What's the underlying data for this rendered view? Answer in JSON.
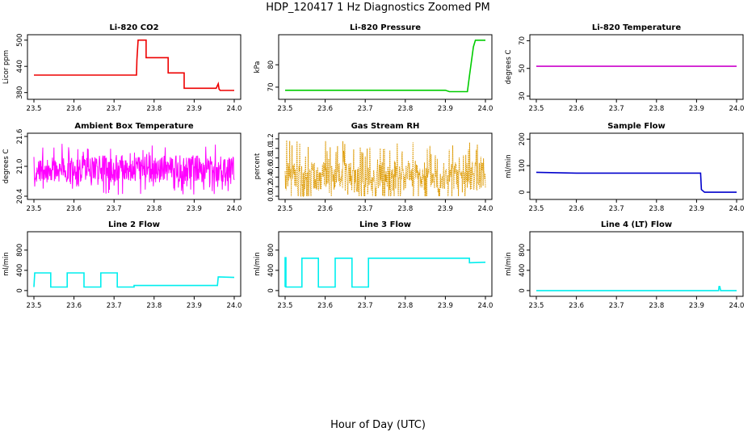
{
  "title": "HDP_120417  1 Hz Diagnostics Zoomed PM",
  "xlabel": "Hour of Day (UTC)",
  "chart_data": [
    {
      "type": "line",
      "title": "Li-820 CO2",
      "ylabel": "Licor ppm",
      "color": "#ee0000",
      "xlim": [
        23.5,
        24.0
      ],
      "ylim": [
        372,
        505
      ],
      "yticks": [
        380,
        440,
        500
      ],
      "xticks": [
        23.5,
        23.6,
        23.7,
        23.8,
        23.9,
        24.0
      ],
      "series": [
        {
          "x": [
            23.5,
            23.756,
            23.757,
            23.76,
            23.78,
            23.78,
            23.8,
            23.835,
            23.835,
            23.86,
            23.875,
            23.875,
            23.955,
            23.96,
            23.962,
            23.965,
            24.0
          ],
          "values": [
            420,
            420,
            455,
            500,
            500,
            460,
            460,
            460,
            425,
            425,
            425,
            390,
            390,
            400,
            388,
            385,
            385
          ]
        }
      ]
    },
    {
      "type": "line",
      "title": "Li-820 Pressure",
      "ylabel": "kPa",
      "color": "#00cc00",
      "xlim": [
        23.5,
        24.0
      ],
      "ylim": [
        66,
        92
      ],
      "yticks": [
        70,
        80
      ],
      "xticks": [
        23.5,
        23.6,
        23.7,
        23.8,
        23.9,
        24.0
      ],
      "series": [
        {
          "x": [
            23.5,
            23.8,
            23.9,
            23.91,
            23.955,
            23.96,
            23.97,
            23.975,
            24.0
          ],
          "values": [
            68.6,
            68.6,
            68.6,
            68.0,
            68.0,
            75,
            88,
            91,
            91
          ]
        }
      ]
    },
    {
      "type": "line",
      "title": "Li-820 Temperature",
      "ylabel": "degrees C",
      "color": "#cc00cc",
      "xlim": [
        23.5,
        24.0
      ],
      "ylim": [
        30,
        72
      ],
      "yticks": [
        30,
        50,
        70
      ],
      "xticks": [
        23.5,
        23.6,
        23.7,
        23.8,
        23.9,
        24.0
      ],
      "series": [
        {
          "x": [
            23.5,
            24.0
          ],
          "values": [
            51.5,
            51.5
          ]
        }
      ]
    },
    {
      "type": "line",
      "title": "Ambient Box Temperature",
      "ylabel": "degrees C",
      "color": "#ff00ff",
      "xlim": [
        23.5,
        24.0
      ],
      "ylim": [
        20.4,
        21.6
      ],
      "yticks": [
        20.4,
        21.0,
        21.6
      ],
      "xticks": [
        23.5,
        23.6,
        23.7,
        23.8,
        23.9,
        24.0
      ],
      "series": [
        {
          "x": [
            23.5,
            24.0
          ],
          "values": [
            20.9,
            21.0
          ]
        }
      ]
    },
    {
      "type": "line",
      "title": "Gas Stream RH",
      "ylabel": "percent",
      "color": "#dd9900",
      "xlim": [
        23.5,
        24.0
      ],
      "ylim": [
        0,
        1.25
      ],
      "yticks": [
        0.0,
        0.2,
        0.4,
        0.6,
        0.8,
        1.0,
        1.2
      ],
      "xticks": [
        23.5,
        23.6,
        23.7,
        23.8,
        23.9,
        24.0
      ],
      "series": [
        {
          "x": [
            23.5,
            24.0
          ],
          "values": [
            0.4,
            0.4
          ]
        }
      ]
    },
    {
      "type": "line",
      "title": "Sample Flow",
      "ylabel": "ml/min",
      "color": "#0000cc",
      "xlim": [
        23.5,
        24.0
      ],
      "ylim": [
        -15,
        210
      ],
      "yticks": [
        0,
        100,
        200
      ],
      "xticks": [
        23.5,
        23.6,
        23.7,
        23.8,
        23.9,
        24.0
      ],
      "series": [
        {
          "x": [
            23.5,
            23.6,
            23.8,
            23.91,
            23.912,
            23.92,
            24.0
          ],
          "values": [
            75,
            72,
            72,
            72,
            10,
            0,
            0
          ]
        }
      ]
    },
    {
      "type": "line",
      "title": "Line 2 Flow",
      "ylabel": "ml/min",
      "color": "#00eeee",
      "xlim": [
        23.5,
        24.0
      ],
      "ylim": [
        -50,
        1100
      ],
      "yticks": [
        0,
        400,
        800
      ],
      "xticks": [
        23.5,
        23.6,
        23.7,
        23.8,
        23.9,
        24.0
      ],
      "series": [
        {
          "x": [
            23.5,
            23.502,
            23.542,
            23.542,
            23.583,
            23.583,
            23.625,
            23.625,
            23.667,
            23.667,
            23.708,
            23.708,
            23.75,
            23.75,
            23.958,
            23.96,
            24.0
          ],
          "values": [
            70,
            350,
            350,
            70,
            70,
            350,
            350,
            70,
            70,
            350,
            350,
            70,
            70,
            100,
            100,
            270,
            260
          ]
        }
      ]
    },
    {
      "type": "line",
      "title": "Line 3 Flow",
      "ylabel": "ml/min",
      "color": "#00eeee",
      "xlim": [
        23.5,
        24.0
      ],
      "ylim": [
        -50,
        1100
      ],
      "yticks": [
        0,
        400,
        800
      ],
      "xticks": [
        23.5,
        23.6,
        23.7,
        23.8,
        23.9,
        24.0
      ],
      "series": [
        {
          "x": [
            23.5,
            23.5,
            23.502,
            23.502,
            23.542,
            23.542,
            23.583,
            23.583,
            23.625,
            23.625,
            23.667,
            23.667,
            23.708,
            23.708,
            23.96,
            23.96,
            24.0
          ],
          "values": [
            70,
            650,
            650,
            70,
            70,
            640,
            640,
            70,
            70,
            640,
            640,
            70,
            70,
            640,
            640,
            550,
            560
          ]
        }
      ]
    },
    {
      "type": "line",
      "title": "Line 4 (LT) Flow",
      "ylabel": "ml/min",
      "color": "#00eeee",
      "xlim": [
        23.5,
        24.0
      ],
      "ylim": [
        -50,
        1100
      ],
      "yticks": [
        0,
        400,
        800
      ],
      "xticks": [
        23.5,
        23.6,
        23.7,
        23.8,
        23.9,
        24.0
      ],
      "series": [
        {
          "x": [
            23.5,
            23.955,
            23.956,
            23.958,
            23.96,
            24.0
          ],
          "values": [
            0,
            0,
            80,
            80,
            0,
            0
          ]
        }
      ]
    }
  ]
}
